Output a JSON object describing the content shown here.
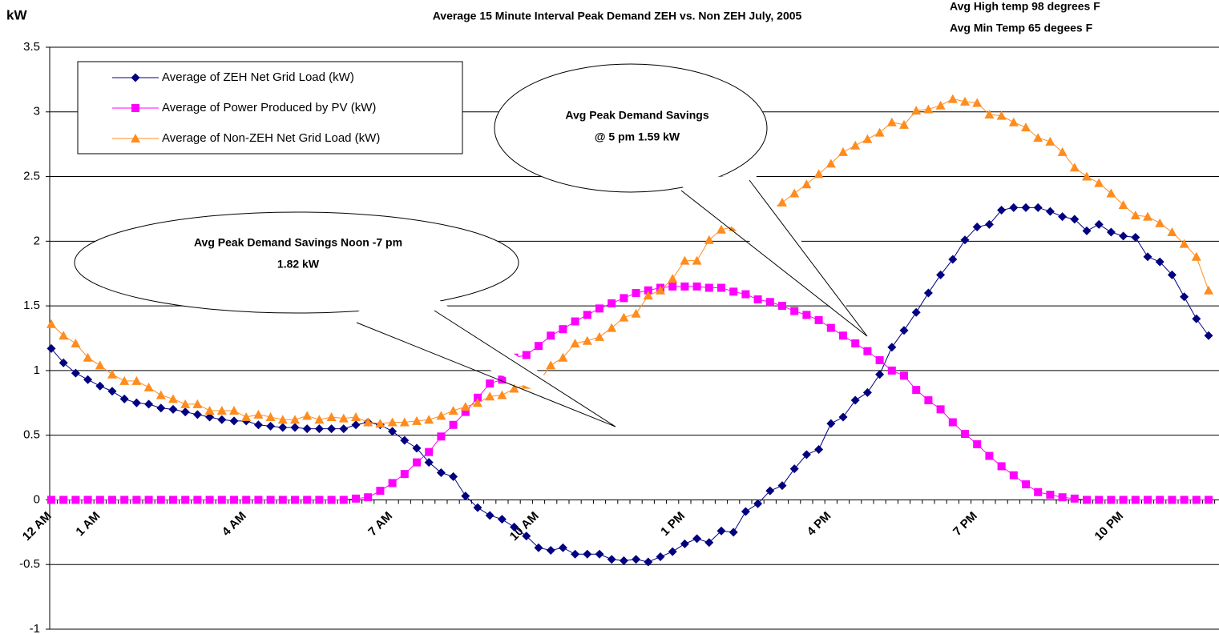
{
  "chart_data": {
    "type": "line",
    "title": "Average 15 Minute Interval Peak Demand ZEH vs. Non ZEH July, 2005",
    "y_label": "kW",
    "annotations": [
      "Avg High temp 98 degrees F",
      "Avg Min Temp 65 degees F",
      "Avg Peak Demand Savings Noon -7 pm",
      "1.82 kW",
      "Avg Peak Demand Savings",
      "@ 5 pm 1.59 kW"
    ],
    "categories": [
      "12 AM",
      null,
      null,
      null,
      "1 AM",
      null,
      null,
      null,
      null,
      null,
      null,
      null,
      null,
      null,
      null,
      null,
      "4 AM",
      null,
      null,
      null,
      null,
      null,
      null,
      null,
      null,
      null,
      null,
      null,
      "7 AM",
      null,
      null,
      null,
      null,
      null,
      null,
      null,
      null,
      null,
      null,
      null,
      "10 AM",
      null,
      null,
      null,
      null,
      null,
      null,
      null,
      null,
      null,
      null,
      null,
      "1 PM",
      null,
      null,
      null,
      null,
      null,
      null,
      null,
      null,
      null,
      null,
      null,
      "4 PM",
      null,
      null,
      null,
      null,
      null,
      null,
      null,
      null,
      null,
      null,
      null,
      "7 PM",
      null,
      null,
      null,
      null,
      null,
      null,
      null,
      null,
      null,
      null,
      null,
      "10 PM",
      null,
      null,
      null,
      null,
      null,
      null,
      null
    ],
    "series": [
      {
        "name": "Average of ZEH Net Grid Load (kW)",
        "color": "#000080",
        "marker": "diamond",
        "values": [
          1.17,
          1.06,
          0.98,
          0.93,
          0.88,
          0.84,
          0.78,
          0.75,
          0.74,
          0.71,
          0.7,
          0.68,
          0.66,
          0.64,
          0.62,
          0.61,
          0.61,
          0.58,
          0.57,
          0.56,
          0.56,
          0.55,
          0.55,
          0.55,
          0.55,
          0.58,
          0.6,
          0.58,
          0.53,
          0.46,
          0.4,
          0.29,
          0.21,
          0.18,
          0.03,
          -0.06,
          -0.12,
          -0.15,
          -0.21,
          -0.28,
          -0.37,
          -0.39,
          -0.37,
          -0.42,
          -0.42,
          -0.42,
          -0.46,
          -0.47,
          -0.46,
          -0.48,
          -0.44,
          -0.4,
          -0.34,
          -0.3,
          -0.33,
          -0.24,
          -0.25,
          -0.09,
          -0.03,
          0.07,
          0.11,
          0.24,
          0.35,
          0.39,
          0.59,
          0.64,
          0.77,
          0.83,
          0.97,
          1.18,
          1.31,
          1.45,
          1.6,
          1.74,
          1.86,
          2.01,
          2.11,
          2.13,
          2.24,
          2.26,
          2.26,
          2.26,
          2.23,
          2.19,
          2.17,
          2.08,
          2.13,
          2.07,
          2.04,
          2.03,
          1.88,
          1.84,
          1.74,
          1.57,
          1.4,
          1.27
        ]
      },
      {
        "name": "Average of Power Produced by PV (kW)",
        "color": "#FF00FF",
        "marker": "square",
        "values": [
          0,
          0,
          0,
          0,
          0,
          0,
          0,
          0,
          0,
          0,
          0,
          0,
          0,
          0,
          0,
          0,
          0,
          0,
          0,
          0,
          0,
          0,
          0,
          0,
          0,
          0.01,
          0.02,
          0.07,
          0.13,
          0.2,
          0.29,
          0.37,
          0.49,
          0.58,
          0.68,
          0.79,
          0.9,
          0.93,
          1.1,
          1.12,
          1.19,
          1.27,
          1.32,
          1.38,
          1.43,
          1.48,
          1.52,
          1.56,
          1.6,
          1.62,
          1.64,
          1.65,
          1.65,
          1.65,
          1.64,
          1.64,
          1.61,
          1.59,
          1.55,
          1.53,
          1.5,
          1.46,
          1.43,
          1.39,
          1.33,
          1.27,
          1.21,
          1.15,
          1.08,
          1.0,
          0.96,
          0.85,
          0.77,
          0.7,
          0.6,
          0.51,
          0.43,
          0.34,
          0.26,
          0.19,
          0.12,
          0.06,
          0.04,
          0.02,
          0.01,
          0,
          0,
          0,
          0,
          0,
          0,
          0,
          0,
          0,
          0,
          0
        ]
      },
      {
        "name": "Average of Non-ZEH Net Grid Load (kW)",
        "color": "#FF8C1E",
        "marker": "triangle",
        "values": [
          1.36,
          1.27,
          1.21,
          1.1,
          1.04,
          0.97,
          0.92,
          0.92,
          0.87,
          0.81,
          0.78,
          0.74,
          0.74,
          0.69,
          0.69,
          0.69,
          0.64,
          0.66,
          0.64,
          0.62,
          0.62,
          0.65,
          0.62,
          0.64,
          0.63,
          0.64,
          0.6,
          0.59,
          0.6,
          0.6,
          0.61,
          0.62,
          0.65,
          0.69,
          0.72,
          0.75,
          0.8,
          0.81,
          0.86,
          0.89,
          0.91,
          1.04,
          1.1,
          1.21,
          1.23,
          1.26,
          1.33,
          1.41,
          1.44,
          1.58,
          1.62,
          1.71,
          1.85,
          1.85,
          2.01,
          2.09,
          2.11,
          2.17,
          2.2,
          2.24,
          2.3,
          2.37,
          2.44,
          2.52,
          2.6,
          2.69,
          2.74,
          2.79,
          2.84,
          2.92,
          2.9,
          3.01,
          3.02,
          3.05,
          3.1,
          3.08,
          3.07,
          2.98,
          2.97,
          2.92,
          2.88,
          2.8,
          2.77,
          2.69,
          2.57,
          2.5,
          2.45,
          2.37,
          2.28,
          2.2,
          2.19,
          2.14,
          2.07,
          1.98,
          1.88,
          1.62
        ]
      }
    ],
    "ylim": [
      -1,
      3.5
    ],
    "yticks": [
      -1,
      -0.5,
      0,
      0.5,
      1,
      1.5,
      2,
      2.5,
      3,
      3.5
    ],
    "grid": true,
    "legend": "upper left"
  }
}
